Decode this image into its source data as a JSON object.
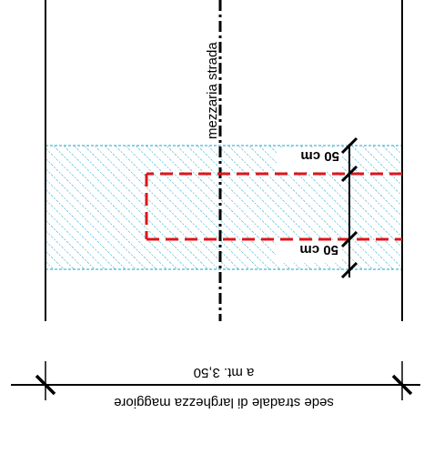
{
  "diagram": {
    "centerline_label": "mezzaria strada",
    "dimension_upper": "50 cm",
    "dimension_lower": "50 cm",
    "road_width_value": "a mt. 3,50",
    "road_width_caption": "sede stradale di larghezza maggiore"
  },
  "colors": {
    "road_edge": "#000000",
    "hatch": "#1aa3c9",
    "excavation_outline": "#e0141a",
    "centerline": "#000000",
    "background": "#ffffff"
  },
  "icons": {
    "dimension_ticks": "slash-tick-icon"
  }
}
